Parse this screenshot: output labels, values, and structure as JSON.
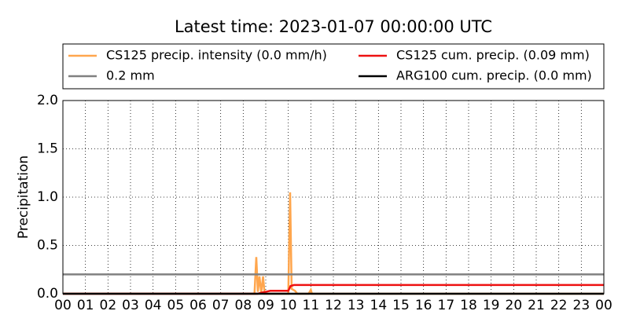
{
  "chart_data": {
    "type": "line",
    "title": "Latest time: 2023-01-07 00:00:00 UTC",
    "y_label": "Precipitation",
    "xlim": [
      0,
      24
    ],
    "xticks": [
      {
        "value": 0,
        "label": "00"
      },
      {
        "value": 1,
        "label": "01"
      },
      {
        "value": 2,
        "label": "02"
      },
      {
        "value": 3,
        "label": "03"
      },
      {
        "value": 4,
        "label": "04"
      },
      {
        "value": 5,
        "label": "05"
      },
      {
        "value": 6,
        "label": "06"
      },
      {
        "value": 7,
        "label": "07"
      },
      {
        "value": 8,
        "label": "08"
      },
      {
        "value": 9,
        "label": "09"
      },
      {
        "value": 10,
        "label": "10"
      },
      {
        "value": 11,
        "label": "11"
      },
      {
        "value": 12,
        "label": "12"
      },
      {
        "value": 13,
        "label": "13"
      },
      {
        "value": 14,
        "label": "14"
      },
      {
        "value": 15,
        "label": "15"
      },
      {
        "value": 16,
        "label": "16"
      },
      {
        "value": 17,
        "label": "17"
      },
      {
        "value": 18,
        "label": "18"
      },
      {
        "value": 19,
        "label": "19"
      },
      {
        "value": 20,
        "label": "20"
      },
      {
        "value": 21,
        "label": "21"
      },
      {
        "value": 22,
        "label": "22"
      },
      {
        "value": 23,
        "label": "23"
      },
      {
        "value": 24,
        "label": "00"
      }
    ],
    "ylim": [
      0,
      2
    ],
    "yticks": [
      {
        "value": 0,
        "label": "0.0"
      },
      0.5,
      {
        "value": 1,
        "label": "1.0"
      },
      1.5,
      {
        "value": 2,
        "label": "2.0"
      }
    ],
    "grid": true,
    "legend": "upper center",
    "series": [
      {
        "name": "CS125 precip. intensity (0.0 mm/h)",
        "color": "#ffa64d",
        "x": [
          0,
          8.5,
          8.58,
          8.65,
          8.72,
          8.8,
          8.88,
          8.95,
          9.0,
          10.0,
          10.08,
          10.15,
          10.3,
          10.4,
          10.9,
          11.0,
          11.05,
          24
        ],
        "values": [
          0,
          0,
          0.38,
          0.02,
          0.18,
          0.01,
          0.18,
          0,
          0,
          0,
          1.05,
          0.05,
          0.03,
          0,
          0,
          0.04,
          0,
          0
        ]
      },
      {
        "name": "0.2 mm",
        "color": "#808080",
        "x": [
          0,
          24
        ],
        "values": [
          0.2,
          0.2
        ]
      },
      {
        "name": "CS125 cum. precip. (0.09 mm)",
        "color": "#ee1111",
        "x": [
          0,
          8.65,
          8.8,
          9.0,
          9.2,
          10.0,
          10.1,
          10.25,
          24
        ],
        "values": [
          0,
          0,
          0.01,
          0.02,
          0.03,
          0.03,
          0.08,
          0.09,
          0.09
        ]
      },
      {
        "name": "ARG100 cum. precip. (0.0 mm)",
        "color": "#000000",
        "x": [
          0,
          24
        ],
        "values": [
          0,
          0
        ]
      }
    ]
  }
}
